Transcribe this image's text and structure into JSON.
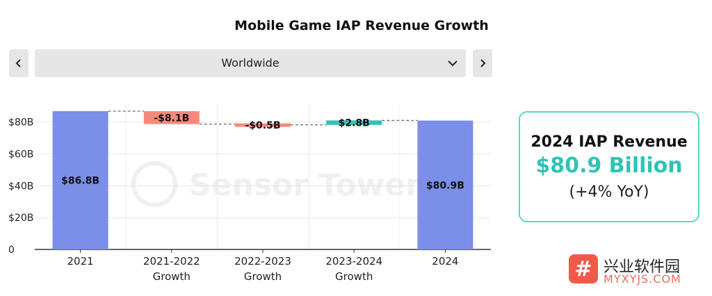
{
  "title": "Mobile Game IAP Revenue Growth",
  "nav": {
    "prev_icon": "chevron-left-icon",
    "next_icon": "chevron-right-icon"
  },
  "region": {
    "selected": "Worldwide",
    "icon": "chevron-down-icon"
  },
  "watermark": "Sensor Tower",
  "colors": {
    "total": "#7b8ee8",
    "decrease": "#f7897a",
    "increase": "#2ec4b6",
    "card_border": "#5bd6c6"
  },
  "chart_data": {
    "type": "waterfall",
    "ylim": [
      0,
      90
    ],
    "yticks": [
      {
        "value": 0,
        "label": "0"
      },
      {
        "value": 20,
        "label": "$20B"
      },
      {
        "value": 40,
        "label": "$40B"
      },
      {
        "value": 60,
        "label": "$60B"
      },
      {
        "value": 80,
        "label": "$80B"
      }
    ],
    "bars": [
      {
        "label_lines": [
          "2021"
        ],
        "kind": "total",
        "value": 86.8,
        "label": "$86.8B"
      },
      {
        "label_lines": [
          "2021-2022",
          "Growth"
        ],
        "kind": "decrease",
        "value": -8.1,
        "label": "-$8.1B"
      },
      {
        "label_lines": [
          "2022-2023",
          "Growth"
        ],
        "kind": "decrease",
        "value": -0.5,
        "label": "-$0.5B"
      },
      {
        "label_lines": [
          "2023-2024",
          "Growth"
        ],
        "kind": "increase",
        "value": 2.8,
        "label": "$2.8B"
      },
      {
        "label_lines": [
          "2024"
        ],
        "kind": "total",
        "value": 80.9,
        "label": "$80.9B"
      }
    ]
  },
  "card": {
    "line1": "2024 IAP Revenue",
    "line2": "$80.9 Billion",
    "line3": "(+4% YoY)"
  },
  "brand": {
    "cn": "兴业软件园",
    "en": "MYXYJS.COM",
    "logo": "#"
  }
}
